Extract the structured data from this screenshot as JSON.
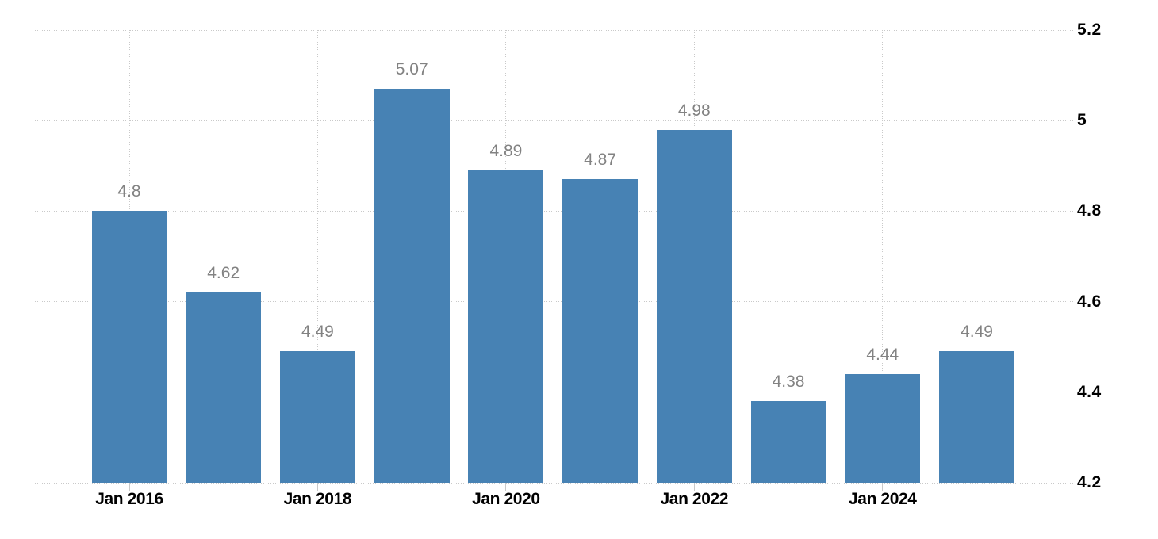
{
  "chart_data": {
    "type": "bar",
    "title": "",
    "legend": "none",
    "grid": "dotted",
    "background_color": "#ffffff",
    "bar_color": "#4782b4",
    "data_label_color": "#828282",
    "axis_text_color": "#000000",
    "grid_color": "#c9c9c9",
    "values": [
      4.8,
      4.62,
      4.49,
      5.07,
      4.89,
      4.87,
      4.98,
      4.38,
      4.44,
      4.49
    ],
    "data_labels": [
      "4.8",
      "4.62",
      "4.49",
      "5.07",
      "4.89",
      "4.87",
      "4.98",
      "4.38",
      "4.44",
      "4.49"
    ],
    "x_axis": {
      "tick_labels": [
        "Jan 2016",
        "Jan 2018",
        "Jan 2020",
        "Jan 2022",
        "Jan 2024"
      ],
      "tick_bar_index": [
        0,
        2,
        4,
        6,
        8
      ]
    },
    "y_axis": {
      "side": "right",
      "min": 4.2,
      "max": 5.2,
      "tick_values": [
        5.2,
        5.0,
        4.8,
        4.6,
        4.4,
        4.2
      ],
      "tick_labels": [
        "5.2",
        "5",
        "4.8",
        "4.6",
        "4.4",
        "4.2"
      ]
    }
  }
}
